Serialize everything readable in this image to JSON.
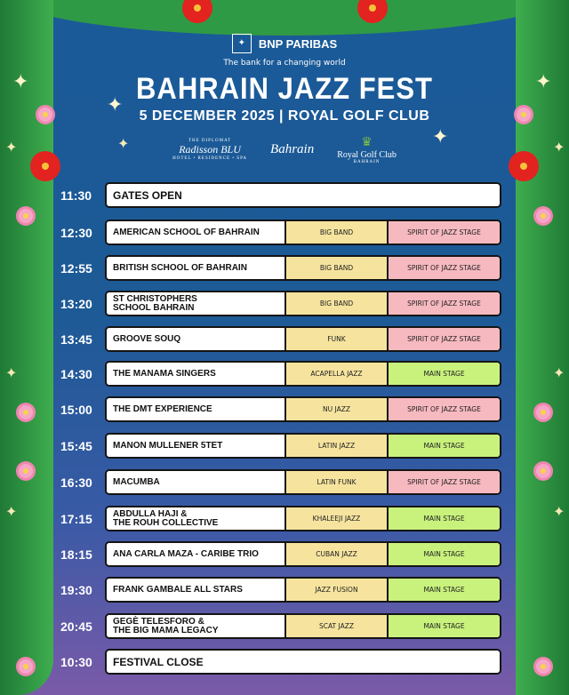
{
  "sponsor": {
    "name": "BNP PARIBAS",
    "tagline": "The bank for a changing world"
  },
  "title": "BAHRAIN JAZZ FEST",
  "subtitle": "5 DECEMBER 2025 | ROYAL GOLF CLUB",
  "partners": [
    {
      "top": "THE DIPLOMAT",
      "name": "Radisson BLU",
      "bottom": "HOTEL • RESIDENCE • SPA"
    },
    {
      "name": "Bahrain"
    },
    {
      "name": "Royal Golf Club",
      "bottom": "BAHRAIN"
    }
  ],
  "colors": {
    "genre": "#f6e49e",
    "spirit_stage": "#f7b9c0",
    "main_stage": "#c9f27d",
    "background": "#1d5a96",
    "border_green": "#2f9a45"
  },
  "schedule": [
    {
      "time": "11:30",
      "act": "GATES OPEN"
    },
    {
      "time": "12:30",
      "act": "AMERICAN SCHOOL OF BAHRAIN",
      "genre": "BIG BAND",
      "stage": "SPIRIT OF JAZZ STAGE"
    },
    {
      "time": "12:55",
      "act": "BRITISH SCHOOL OF BAHRAIN",
      "genre": "BIG BAND",
      "stage": "SPIRIT OF JAZZ STAGE"
    },
    {
      "time": "13:20",
      "act": "ST CHRISTOPHERS\nSCHOOL BAHRAIN",
      "genre": "BIG BAND",
      "stage": "SPIRIT OF JAZZ STAGE"
    },
    {
      "time": "13:45",
      "act": "GROOVE SOUQ",
      "genre": "FUNK",
      "stage": "SPIRIT OF JAZZ STAGE"
    },
    {
      "time": "14:30",
      "act": "THE MANAMA SINGERS",
      "genre": "ACAPELLA JAZZ",
      "stage": "MAIN STAGE"
    },
    {
      "time": "15:00",
      "act": "THE DMT EXPERIENCE",
      "genre": "NU JAZZ",
      "stage": "SPIRIT OF JAZZ STAGE"
    },
    {
      "time": "15:45",
      "act": "MANON MULLENER 5TET",
      "genre": "LATIN JAZZ",
      "stage": "MAIN STAGE"
    },
    {
      "time": "16:30",
      "act": "MACUMBA",
      "genre": "LATIN FUNK",
      "stage": "SPIRIT OF JAZZ STAGE"
    },
    {
      "time": "17:15",
      "act": "ABDULLA HAJI &\nTHE ROUH COLLECTIVE",
      "genre": "KHALEEJI JAZZ",
      "stage": "MAIN STAGE"
    },
    {
      "time": "18:15",
      "act": "ANA CARLA MAZA - CARIBE TRIO",
      "genre": "CUBAN JAZZ",
      "stage": "MAIN STAGE"
    },
    {
      "time": "19:30",
      "act": "FRANK GAMBALE ALL STARS",
      "genre": "JAZZ FUSION",
      "stage": "MAIN STAGE"
    },
    {
      "time": "20:45",
      "act": "GEGÈ TELESFORO &\nTHE BIG MAMA LEGACY",
      "genre": "SCAT JAZZ",
      "stage": "MAIN STAGE"
    },
    {
      "time": "10:30",
      "act": "FESTIVAL CLOSE"
    }
  ]
}
